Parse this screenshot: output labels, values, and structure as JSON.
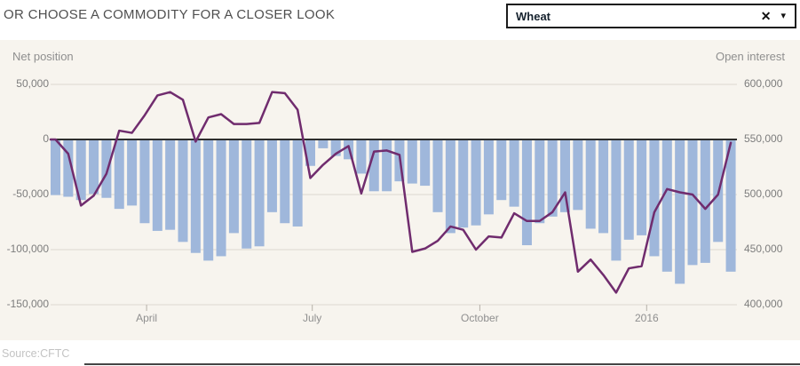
{
  "header": {
    "title": "OR CHOOSE A COMMODITY FOR A CLOSER LOOK",
    "dropdown": {
      "value": "Wheat",
      "clear_icon": "✕",
      "caret_icon": "▾"
    }
  },
  "source": "Source:CFTC",
  "colors": {
    "chart_bg": "#f7f4ee",
    "bar": "#9fb7db",
    "line": "#702c6e",
    "zero_line": "#2e2e2e",
    "gridline": "#ddd8d0",
    "tick_mark": "#b5b0a8"
  },
  "chart_data": {
    "type": "combo",
    "x_unit": "week",
    "weeks": 54,
    "left_axis": {
      "title": "Net position",
      "tick_values": [
        50000,
        0,
        -50000,
        -100000,
        -150000
      ],
      "tick_labels": [
        "50,000",
        "0",
        "-50,000",
        "-100,000",
        "-150,000"
      ]
    },
    "right_axis": {
      "title": "Open interest",
      "tick_values": [
        600000,
        550000,
        500000,
        450000,
        400000
      ],
      "tick_labels": [
        "600,000",
        "550,000",
        "500,000",
        "450,000",
        "400,000"
      ]
    },
    "x_axis": {
      "tick_labels": [
        "April",
        "July",
        "October",
        "2016"
      ],
      "tick_week_positions": [
        7.15,
        20.15,
        33.3,
        46.4
      ]
    },
    "series": [
      {
        "name": "Net position",
        "type": "bar",
        "axis": "left",
        "values": [
          -50500,
          -52000,
          -55000,
          -49500,
          -53000,
          -63000,
          -60000,
          -76000,
          -83000,
          -82000,
          -93000,
          -103000,
          -110000,
          -106000,
          -85000,
          -99000,
          -97000,
          -66000,
          -76000,
          -79000,
          -24000,
          -8000,
          -15000,
          -18000,
          -31000,
          -47000,
          -47000,
          -38000,
          -40000,
          -42000,
          -66000,
          -85000,
          -80000,
          -78000,
          -68000,
          -55000,
          -61000,
          -96000,
          -76000,
          -70000,
          -66000,
          -64000,
          -81000,
          -85000,
          -110000,
          -91000,
          -87000,
          -106000,
          -120000,
          -131000,
          -114000,
          -112000,
          -93000,
          -120000
        ]
      },
      {
        "name": "Open interest",
        "type": "line",
        "axis": "right",
        "values": [
          550000,
          537000,
          490000,
          499000,
          519000,
          558000,
          556000,
          572000,
          590000,
          593000,
          586000,
          548000,
          570000,
          573000,
          564000,
          564000,
          565000,
          593000,
          592000,
          577000,
          515000,
          527000,
          537000,
          544000,
          501000,
          539000,
          540000,
          536000,
          448000,
          451000,
          458000,
          471000,
          468000,
          450000,
          462000,
          461000,
          483000,
          476000,
          476000,
          484000,
          502000,
          430000,
          441000,
          427000,
          411000,
          433000,
          435000,
          484000,
          505000,
          502000,
          500000,
          487000,
          500000,
          547000
        ]
      }
    ]
  }
}
